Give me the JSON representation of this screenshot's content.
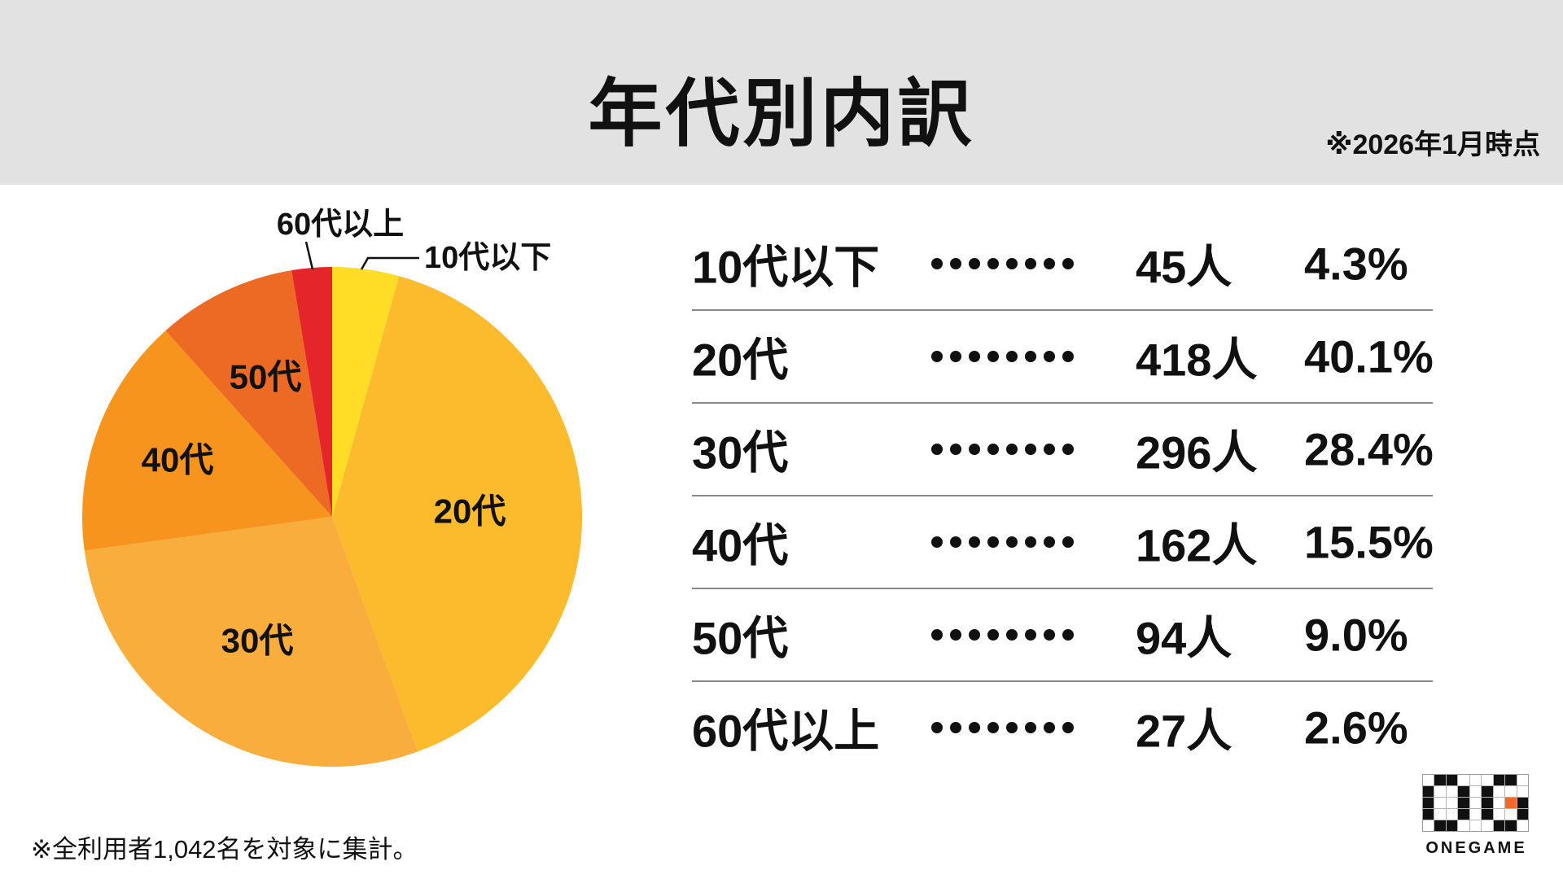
{
  "header": {
    "title": "年代別内訳",
    "date_note": "※2026年1月時点"
  },
  "chart_data": {
    "type": "pie",
    "title": "年代別内訳",
    "labels": [
      "10代以下",
      "20代",
      "30代",
      "40代",
      "50代",
      "60代以上"
    ],
    "values": [
      45,
      418,
      296,
      162,
      94,
      27
    ],
    "percents": [
      4.3,
      40.1,
      28.4,
      15.5,
      9.0,
      2.6
    ],
    "value_unit": "人",
    "total": 1042,
    "colors": [
      "#FFDC26",
      "#FCBA2D",
      "#F9AD3C",
      "#F7941E",
      "#EC6A23",
      "#E4252A"
    ],
    "start_angle": "12-oclock",
    "direction": "clockwise",
    "legend_position": "none",
    "label_style": "inside-for-large-slices, callout-for-small-slices"
  },
  "table": {
    "rows": [
      {
        "label": "10代以下",
        "count": "45人",
        "percent": "4.3%"
      },
      {
        "label": "20代",
        "count": "418人",
        "percent": "40.1%"
      },
      {
        "label": "30代",
        "count": "296人",
        "percent": "28.4%"
      },
      {
        "label": "40代",
        "count": "162人",
        "percent": "15.5%"
      },
      {
        "label": "50代",
        "count": "94人",
        "percent": "9.0%"
      },
      {
        "label": "60代以上",
        "count": "27人",
        "percent": "2.6%"
      }
    ]
  },
  "footer": {
    "note": "※全利用者1,042名を対象に集計。"
  },
  "logo": {
    "text": "ONEGAME",
    "accent": "#F16A2B",
    "grid": [
      "wbbwwwbbw",
      "bwwbwbwww",
      "bwwbwbwob",
      "bwwbwbwwb",
      "wbbwwwbbw"
    ]
  }
}
